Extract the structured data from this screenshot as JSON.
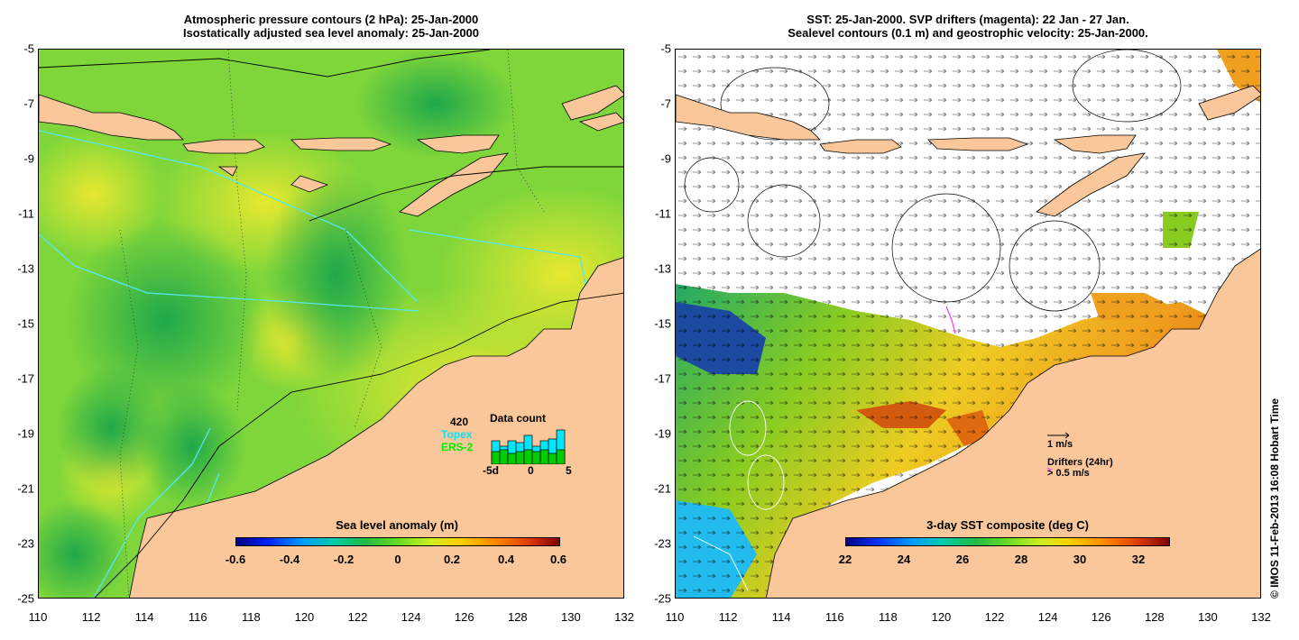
{
  "left_panel": {
    "title_line1": "Atmospheric pressure contours (2 hPa): 25-Jan-2000",
    "title_line2": "Isostatically adjusted sea level anomaly: 25-Jan-2000",
    "colorbar_title": "Sea level anomaly (m)",
    "colorbar_ticks": [
      "-0.6",
      "-0.4",
      "-0.2",
      "0",
      "0.2",
      "0.4",
      "0.6"
    ],
    "colors": {
      "land": "#f9c79a",
      "sea_low": "#22b14c",
      "sea_mid": "#7edc1e",
      "sea_high": "#d6ef2a",
      "track": "#55e8f0"
    },
    "inset": {
      "count": "420",
      "topex": "Topex",
      "ers2": "ERS-2",
      "title": "Data count",
      "axis_labels": [
        "-5d",
        "0",
        "5"
      ]
    }
  },
  "right_panel": {
    "title_line1": "SST: 25-Jan-2000. SVP drifters (magenta): 22 Jan - 27 Jan.",
    "title_line2": "Sealevel contours (0.1 m) and geostrophic velocity: 25-Jan-2000.",
    "colorbar_title": "3-day SST composite (deg C)",
    "colorbar_ticks": [
      "22",
      "24",
      "26",
      "28",
      "30",
      "32"
    ],
    "velocity_scale_label": "1 m/s",
    "drifters_label": "Drifters (24hr)",
    "drifters_scale": "> 0.5 m/s",
    "colors": {
      "land": "#f9c79a",
      "drifter": "#ff33ff"
    }
  },
  "axes": {
    "x_ticks": [
      "110",
      "112",
      "114",
      "116",
      "118",
      "120",
      "122",
      "124",
      "126",
      "128",
      "130",
      "132"
    ],
    "y_ticks": [
      "-5",
      "-7",
      "-9",
      "-11",
      "-13",
      "-15",
      "-17",
      "-19",
      "-21",
      "-23",
      "-25"
    ]
  },
  "footer": {
    "copyright": "© IMOS 11-Feb-2013 16:08 Hobart Time"
  }
}
